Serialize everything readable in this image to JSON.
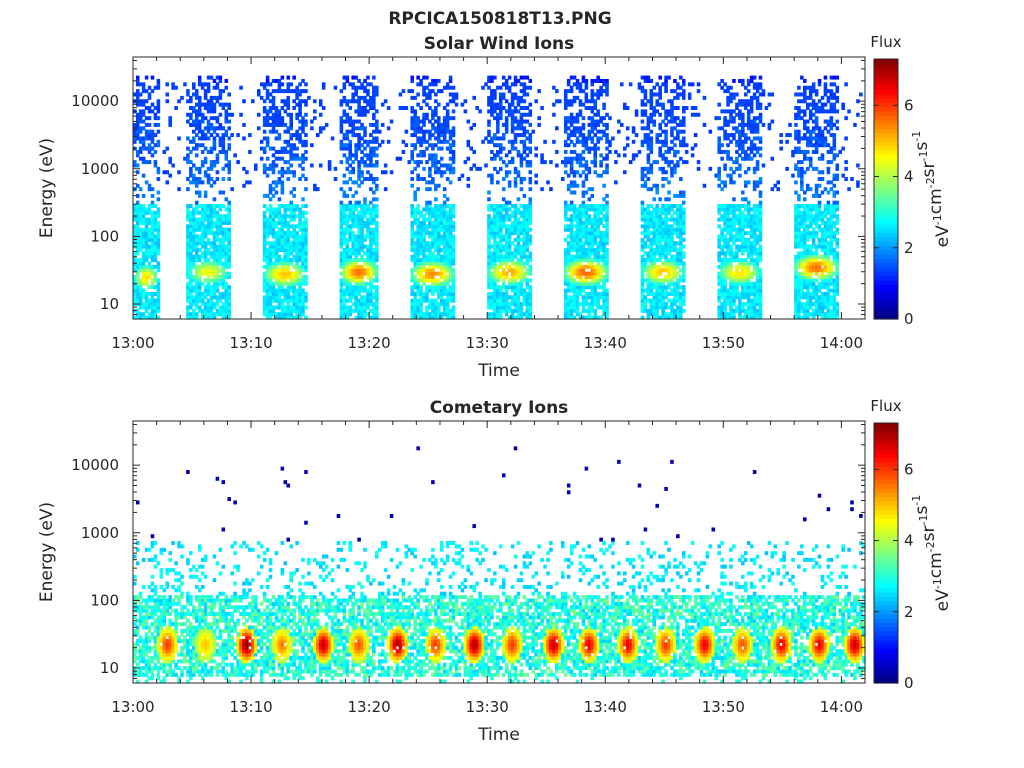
{
  "figure": {
    "title": "RPCICA150818T13.PNG"
  },
  "colorbar": {
    "label": "Flux",
    "unit_base": "eV",
    "unit_parts": [
      {
        "t": "eV",
        "sup": "-1"
      },
      {
        "t": "cm",
        "sup": "-2"
      },
      {
        "t": "sr",
        "sup": "-1"
      },
      {
        "t": "s",
        "sup": "-1"
      }
    ],
    "range": [
      0,
      7.3
    ],
    "ticks": [
      0,
      2,
      4,
      6
    ],
    "colormap": "jet"
  },
  "chart_data": [
    {
      "type": "heatmap",
      "title": "Solar Wind Ions",
      "xlabel": "Time",
      "ylabel": "Energy (eV)",
      "xlim": [
        "13:00",
        "14:02"
      ],
      "ylim": [
        6,
        45000
      ],
      "yscale": "log",
      "xticks": [
        "13:00",
        "13:10",
        "13:20",
        "13:30",
        "13:40",
        "13:50",
        "14:00"
      ],
      "yticks": [
        10,
        100,
        1000,
        10000
      ],
      "yticklabels": [
        "10",
        "100",
        "1000",
        "10000"
      ],
      "grid": false,
      "pattern": "periodic sweeps of roughly 6 min; each sweep spans ~10 eV to ~20000 eV with peak flux (~5-6) near 20-40 eV",
      "sweeps": [
        {
          "t0": "13:00.0",
          "t1": "13:02.0",
          "peak_energy": 25,
          "peak_flux": 4.8
        },
        {
          "t0": "13:04.5",
          "t1": "13:08.0",
          "peak_energy": 30,
          "peak_flux": 4.5
        },
        {
          "t0": "13:11.0",
          "t1": "13:14.5",
          "peak_energy": 28,
          "peak_flux": 5.0
        },
        {
          "t0": "13:17.5",
          "t1": "13:20.5",
          "peak_energy": 30,
          "peak_flux": 5.6
        },
        {
          "t0": "13:23.5",
          "t1": "13:27.0",
          "peak_energy": 28,
          "peak_flux": 5.4
        },
        {
          "t0": "13:30.0",
          "t1": "13:33.5",
          "peak_energy": 30,
          "peak_flux": 5.2
        },
        {
          "t0": "13:36.5",
          "t1": "13:40.0",
          "peak_energy": 30,
          "peak_flux": 5.7
        },
        {
          "t0": "13:43.0",
          "t1": "13:46.5",
          "peak_energy": 30,
          "peak_flux": 5.0
        },
        {
          "t0": "13:49.5",
          "t1": "13:53.0",
          "peak_energy": 30,
          "peak_flux": 4.8
        },
        {
          "t0": "13:56.0",
          "t1": "13:59.5",
          "peak_energy": 35,
          "peak_flux": 5.6
        }
      ]
    },
    {
      "type": "heatmap",
      "title": "Cometary Ions",
      "xlabel": "Time",
      "ylabel": "Energy (eV)",
      "xlim": [
        "13:00",
        "14:02"
      ],
      "ylim": [
        6,
        45000
      ],
      "yscale": "log",
      "xticks": [
        "13:00",
        "13:10",
        "13:20",
        "13:30",
        "13:40",
        "13:50",
        "14:00"
      ],
      "yticks": [
        10,
        100,
        1000,
        10000
      ],
      "yticklabels": [
        "10",
        "100",
        "1000",
        "10000"
      ],
      "grid": false,
      "pattern": "dense low-energy population 10-100 eV with periodic high-flux enhancements (~6-7) near 15-40 eV every ~3 min; sparse points up to ~15000 eV",
      "enhancements": [
        {
          "t": "13:02.8",
          "flux": 6.0
        },
        {
          "t": "13:06.0",
          "flux": 5.0
        },
        {
          "t": "13:09.5",
          "flux": 7.2
        },
        {
          "t": "13:12.5",
          "flux": 5.5
        },
        {
          "t": "13:16.0",
          "flux": 6.8
        },
        {
          "t": "13:19.0",
          "flux": 5.8
        },
        {
          "t": "13:22.3",
          "flux": 7.0
        },
        {
          "t": "13:25.5",
          "flux": 6.0
        },
        {
          "t": "13:28.8",
          "flux": 7.0
        },
        {
          "t": "13:32.0",
          "flux": 6.0
        },
        {
          "t": "13:35.5",
          "flux": 6.8
        },
        {
          "t": "13:38.5",
          "flux": 6.5
        },
        {
          "t": "13:41.8",
          "flux": 6.5
        },
        {
          "t": "13:45.0",
          "flux": 6.0
        },
        {
          "t": "13:48.3",
          "flux": 6.5
        },
        {
          "t": "13:51.5",
          "flux": 5.8
        },
        {
          "t": "13:54.8",
          "flux": 6.5
        },
        {
          "t": "13:58.0",
          "flux": 6.5
        },
        {
          "t": "14:01.0",
          "flux": 6.8
        }
      ]
    }
  ]
}
